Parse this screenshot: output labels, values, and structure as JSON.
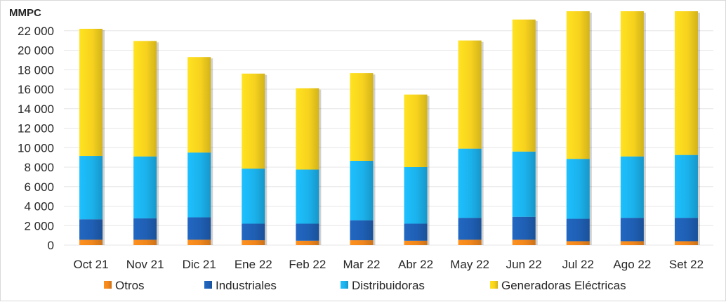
{
  "chart_data": {
    "type": "bar",
    "stacked": true,
    "unit_label": "MMPC",
    "title": "",
    "xlabel": "",
    "ylabel": "MMPC",
    "ylim": [
      0,
      24000
    ],
    "yticks": [
      0,
      2000,
      4000,
      6000,
      8000,
      10000,
      12000,
      14000,
      16000,
      18000,
      20000,
      22000
    ],
    "ytick_labels": [
      "0",
      "2 000",
      "4 000",
      "6 000",
      "8 000",
      "10 000",
      "12 000",
      "14 000",
      "16 000",
      "18 000",
      "20 000",
      "22 000"
    ],
    "grid": true,
    "legend_position": "bottom",
    "categories": [
      "Oct 21",
      "Nov 21",
      "Dic 21",
      "Ene 22",
      "Feb 22",
      "Mar 22",
      "Abr 22",
      "May 22",
      "Jun 22",
      "Jul 22",
      "Ago 22",
      "Set 22"
    ],
    "series": [
      {
        "name": "Otros",
        "color": "#f0861c",
        "values": [
          550,
          550,
          550,
          500,
          450,
          500,
          450,
          550,
          550,
          400,
          400,
          400
        ]
      },
      {
        "name": "Industriales",
        "color": "#1f5fb4",
        "values": [
          2100,
          2200,
          2300,
          1700,
          1750,
          2050,
          1750,
          2250,
          2350,
          2300,
          2400,
          2400
        ]
      },
      {
        "name": "Distribuidoras",
        "color": "#1bb2ec",
        "values": [
          6500,
          6350,
          6650,
          5650,
          5550,
          6100,
          5800,
          7100,
          6700,
          6150,
          6300,
          6450
        ]
      },
      {
        "name": "Generadoras Eléctricas",
        "color": "#f7d21e",
        "values": [
          13050,
          11850,
          9800,
          9750,
          8350,
          9000,
          7450,
          11100,
          13550,
          15150,
          14900,
          14750
        ]
      }
    ]
  }
}
